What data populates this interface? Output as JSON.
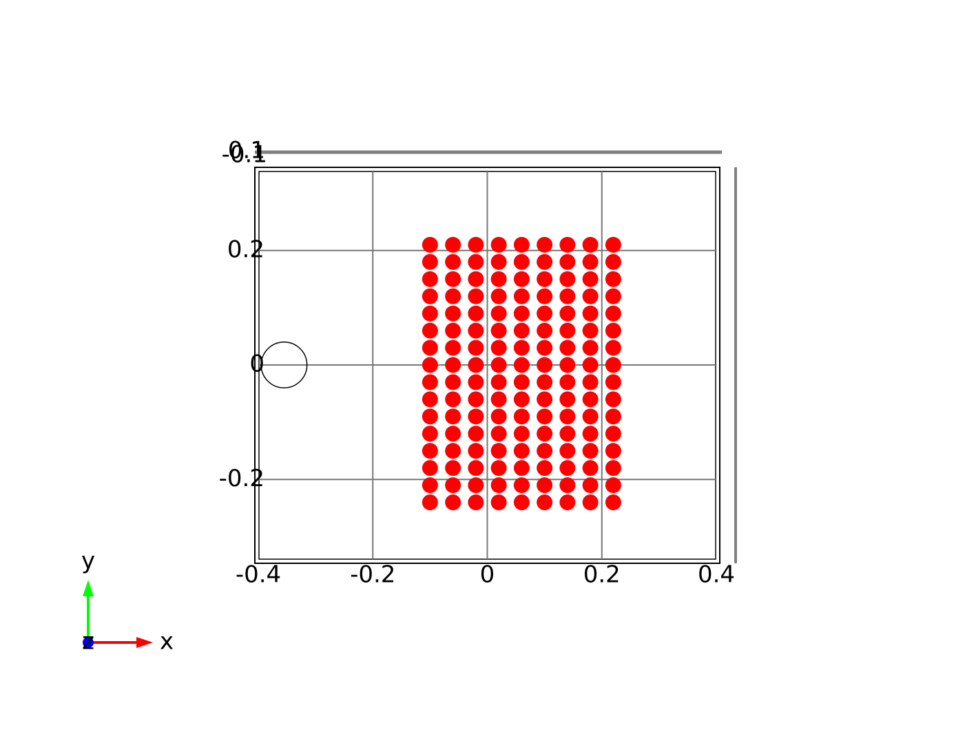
{
  "chart_data": {
    "type": "scatter",
    "color": "#ff0000",
    "xlim": [
      -0.4,
      0.4
    ],
    "ylim": [
      -0.34,
      0.34
    ],
    "xticks": [
      -0.4,
      -0.2,
      0,
      0.2,
      0.4
    ],
    "yticks": [
      -0.2,
      0,
      0.2
    ],
    "zticks": [
      -0.1,
      0.1
    ],
    "grid": true,
    "x": [
      -0.1,
      -0.06,
      -0.02,
      0.02,
      0.06,
      0.1,
      0.14,
      0.18,
      0.22,
      -0.1,
      -0.06,
      -0.02,
      0.02,
      0.06,
      0.1,
      0.14,
      0.18,
      0.22,
      -0.1,
      -0.06,
      -0.02,
      0.02,
      0.06,
      0.1,
      0.14,
      0.18,
      0.22,
      -0.1,
      -0.06,
      -0.02,
      0.02,
      0.06,
      0.1,
      0.14,
      0.18,
      0.22,
      -0.1,
      -0.06,
      -0.02,
      0.02,
      0.06,
      0.1,
      0.14,
      0.18,
      0.22,
      -0.1,
      -0.06,
      -0.02,
      0.02,
      0.06,
      0.1,
      0.14,
      0.18,
      0.22,
      -0.1,
      -0.06,
      -0.02,
      0.02,
      0.06,
      0.1,
      0.14,
      0.18,
      0.22,
      -0.1,
      -0.06,
      -0.02,
      0.02,
      0.06,
      0.1,
      0.14,
      0.18,
      0.22,
      -0.1,
      -0.06,
      -0.02,
      0.02,
      0.06,
      0.1,
      0.14,
      0.18,
      0.22,
      -0.1,
      -0.06,
      -0.02,
      0.02,
      0.06,
      0.1,
      0.14,
      0.18,
      0.22,
      -0.1,
      -0.06,
      -0.02,
      0.02,
      0.06,
      0.1,
      0.14,
      0.18,
      0.22,
      -0.1,
      -0.06,
      -0.02,
      0.02,
      0.06,
      0.1,
      0.14,
      0.18,
      0.22,
      -0.1,
      -0.06,
      -0.02,
      0.02,
      0.06,
      0.1,
      0.14,
      0.18,
      0.22,
      -0.1,
      -0.06,
      -0.02,
      0.02,
      0.06,
      0.1,
      0.14,
      0.18,
      0.22,
      -0.1,
      -0.06,
      -0.02,
      0.02,
      0.06,
      0.1,
      0.14,
      0.18,
      0.22,
      -0.1,
      -0.06,
      -0.02,
      0.02,
      0.06,
      0.1,
      0.14,
      0.18,
      0.22
    ],
    "values": [
      0.21,
      0.21,
      0.21,
      0.21,
      0.21,
      0.21,
      0.21,
      0.21,
      0.21,
      0.18,
      0.18,
      0.18,
      0.18,
      0.18,
      0.18,
      0.18,
      0.18,
      0.18,
      0.15,
      0.15,
      0.15,
      0.15,
      0.15,
      0.15,
      0.15,
      0.15,
      0.15,
      0.12,
      0.12,
      0.12,
      0.12,
      0.12,
      0.12,
      0.12,
      0.12,
      0.12,
      0.09,
      0.09,
      0.09,
      0.09,
      0.09,
      0.09,
      0.09,
      0.09,
      0.09,
      0.06,
      0.06,
      0.06,
      0.06,
      0.06,
      0.06,
      0.06,
      0.06,
      0.06,
      0.03,
      0.03,
      0.03,
      0.03,
      0.03,
      0.03,
      0.03,
      0.03,
      0.03,
      0,
      0,
      0,
      0,
      0,
      0,
      0,
      0,
      0,
      -0.03,
      -0.03,
      -0.03,
      -0.03,
      -0.03,
      -0.03,
      -0.03,
      -0.03,
      -0.03,
      -0.06,
      -0.06,
      -0.06,
      -0.06,
      -0.06,
      -0.06,
      -0.06,
      -0.06,
      -0.06,
      -0.09,
      -0.09,
      -0.09,
      -0.09,
      -0.09,
      -0.09,
      -0.09,
      -0.09,
      -0.09,
      -0.12,
      -0.12,
      -0.12,
      -0.12,
      -0.12,
      -0.12,
      -0.12,
      -0.12,
      -0.12,
      -0.15,
      -0.15,
      -0.15,
      -0.15,
      -0.15,
      -0.15,
      -0.15,
      -0.15,
      -0.15,
      -0.18,
      -0.18,
      -0.18,
      -0.18,
      -0.18,
      -0.18,
      -0.18,
      -0.18,
      -0.18,
      -0.21,
      -0.21,
      -0.21,
      -0.21,
      -0.21,
      -0.21,
      -0.21,
      -0.21,
      -0.21,
      -0.24,
      -0.24,
      -0.24,
      -0.24,
      -0.24,
      -0.24,
      -0.24,
      -0.24,
      -0.24
    ],
    "circle": {
      "x": -0.355,
      "y": 0,
      "r": 0.04
    },
    "orientation_axes": [
      "x",
      "y",
      "z"
    ]
  }
}
